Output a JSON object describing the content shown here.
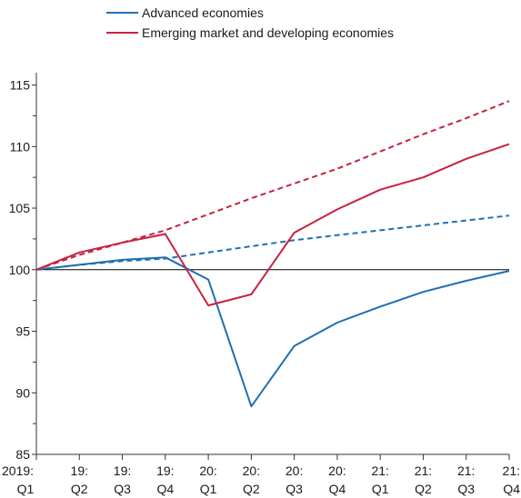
{
  "chart_data": {
    "type": "line",
    "title": "",
    "xlabel": "",
    "ylabel": "",
    "ylim": [
      85,
      116
    ],
    "yticks_major": [
      85,
      90,
      95,
      100,
      105,
      110,
      115
    ],
    "yticks_minor": [
      87.5,
      92.5,
      97.5,
      102.5,
      107.5,
      112.5
    ],
    "reference_line": 100,
    "grid": false,
    "legend_position": "top-center",
    "categories": [
      {
        "top": "2019:",
        "bottom": "Q1"
      },
      {
        "top": "19:",
        "bottom": "Q2"
      },
      {
        "top": "19:",
        "bottom": "Q3"
      },
      {
        "top": "19:",
        "bottom": "Q4"
      },
      {
        "top": "20:",
        "bottom": "Q1"
      },
      {
        "top": "20:",
        "bottom": "Q2"
      },
      {
        "top": "20:",
        "bottom": "Q3"
      },
      {
        "top": "20:",
        "bottom": "Q4"
      },
      {
        "top": "21:",
        "bottom": "Q1"
      },
      {
        "top": "21:",
        "bottom": "Q2"
      },
      {
        "top": "21:",
        "bottom": "Q3"
      },
      {
        "top": "21:",
        "bottom": "Q4"
      }
    ],
    "series": [
      {
        "name": "Advanced economies",
        "color": "#1f6fb4",
        "dash": "solid",
        "in_legend": true,
        "values": [
          100.0,
          100.4,
          100.8,
          101.0,
          99.2,
          88.9,
          93.8,
          95.7,
          97.0,
          98.2,
          99.1,
          99.9
        ]
      },
      {
        "name": "Emerging market and developing economies",
        "color": "#c8213f",
        "dash": "solid",
        "in_legend": true,
        "values": [
          100.0,
          101.4,
          102.2,
          102.9,
          97.1,
          98.0,
          103.0,
          104.9,
          106.5,
          107.5,
          109.0,
          110.2
        ]
      },
      {
        "name": "",
        "color": "#1f6fb4",
        "dash": "dashed",
        "in_legend": false,
        "values": [
          100.0,
          100.4,
          100.7,
          100.9,
          101.4,
          101.9,
          102.4,
          102.8,
          103.2,
          103.6,
          104.0,
          104.4
        ]
      },
      {
        "name": "",
        "color": "#c8213f",
        "dash": "dashed",
        "in_legend": false,
        "values": [
          100.0,
          101.2,
          102.2,
          103.2,
          104.5,
          105.8,
          107.0,
          108.2,
          109.6,
          111.0,
          112.3,
          113.7
        ]
      }
    ]
  }
}
